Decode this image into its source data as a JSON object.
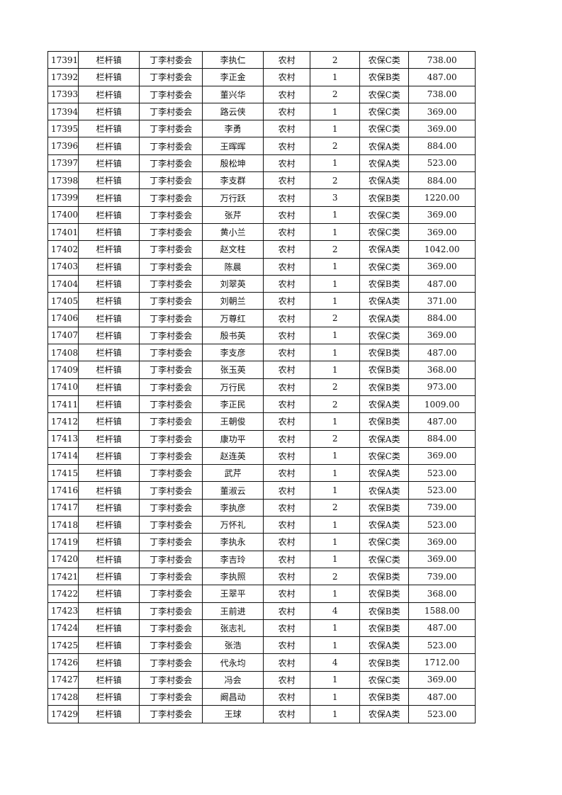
{
  "table": {
    "rows": [
      [
        "17391",
        "栏杆镇",
        "丁李村委会",
        "李执仁",
        "农村",
        "2",
        "农保C类",
        "738.00"
      ],
      [
        "17392",
        "栏杆镇",
        "丁李村委会",
        "李正金",
        "农村",
        "1",
        "农保B类",
        "487.00"
      ],
      [
        "17393",
        "栏杆镇",
        "丁李村委会",
        "董兴华",
        "农村",
        "2",
        "农保C类",
        "738.00"
      ],
      [
        "17394",
        "栏杆镇",
        "丁李村委会",
        "路云侠",
        "农村",
        "1",
        "农保C类",
        "369.00"
      ],
      [
        "17395",
        "栏杆镇",
        "丁李村委会",
        "李勇",
        "农村",
        "1",
        "农保C类",
        "369.00"
      ],
      [
        "17396",
        "栏杆镇",
        "丁李村委会",
        "王晖晖",
        "农村",
        "2",
        "农保A类",
        "884.00"
      ],
      [
        "17397",
        "栏杆镇",
        "丁李村委会",
        "殷松坤",
        "农村",
        "1",
        "农保A类",
        "523.00"
      ],
      [
        "17398",
        "栏杆镇",
        "丁李村委会",
        "李支群",
        "农村",
        "2",
        "农保A类",
        "884.00"
      ],
      [
        "17399",
        "栏杆镇",
        "丁李村委会",
        "万行跃",
        "农村",
        "3",
        "农保B类",
        "1220.00"
      ],
      [
        "17400",
        "栏杆镇",
        "丁李村委会",
        "张芹",
        "农村",
        "1",
        "农保C类",
        "369.00"
      ],
      [
        "17401",
        "栏杆镇",
        "丁李村委会",
        "黄小兰",
        "农村",
        "1",
        "农保C类",
        "369.00"
      ],
      [
        "17402",
        "栏杆镇",
        "丁李村委会",
        "赵文柱",
        "农村",
        "2",
        "农保A类",
        "1042.00"
      ],
      [
        "17403",
        "栏杆镇",
        "丁李村委会",
        "陈晨",
        "农村",
        "1",
        "农保C类",
        "369.00"
      ],
      [
        "17404",
        "栏杆镇",
        "丁李村委会",
        "刘翠英",
        "农村",
        "1",
        "农保B类",
        "487.00"
      ],
      [
        "17405",
        "栏杆镇",
        "丁李村委会",
        "刘朝兰",
        "农村",
        "1",
        "农保A类",
        "371.00"
      ],
      [
        "17406",
        "栏杆镇",
        "丁李村委会",
        "万尊红",
        "农村",
        "2",
        "农保A类",
        "884.00"
      ],
      [
        "17407",
        "栏杆镇",
        "丁李村委会",
        "殷书英",
        "农村",
        "1",
        "农保C类",
        "369.00"
      ],
      [
        "17408",
        "栏杆镇",
        "丁李村委会",
        "李支彦",
        "农村",
        "1",
        "农保B类",
        "487.00"
      ],
      [
        "17409",
        "栏杆镇",
        "丁李村委会",
        "张玉英",
        "农村",
        "1",
        "农保B类",
        "368.00"
      ],
      [
        "17410",
        "栏杆镇",
        "丁李村委会",
        "万行民",
        "农村",
        "2",
        "农保B类",
        "973.00"
      ],
      [
        "17411",
        "栏杆镇",
        "丁李村委会",
        "李正民",
        "农村",
        "2",
        "农保A类",
        "1009.00"
      ],
      [
        "17412",
        "栏杆镇",
        "丁李村委会",
        "王朝俊",
        "农村",
        "1",
        "农保B类",
        "487.00"
      ],
      [
        "17413",
        "栏杆镇",
        "丁李村委会",
        "康功平",
        "农村",
        "2",
        "农保A类",
        "884.00"
      ],
      [
        "17414",
        "栏杆镇",
        "丁李村委会",
        "赵连英",
        "农村",
        "1",
        "农保C类",
        "369.00"
      ],
      [
        "17415",
        "栏杆镇",
        "丁李村委会",
        "武芹",
        "农村",
        "1",
        "农保A类",
        "523.00"
      ],
      [
        "17416",
        "栏杆镇",
        "丁李村委会",
        "董淑云",
        "农村",
        "1",
        "农保A类",
        "523.00"
      ],
      [
        "17417",
        "栏杆镇",
        "丁李村委会",
        "李执彦",
        "农村",
        "2",
        "农保B类",
        "739.00"
      ],
      [
        "17418",
        "栏杆镇",
        "丁李村委会",
        "万怀礼",
        "农村",
        "1",
        "农保A类",
        "523.00"
      ],
      [
        "17419",
        "栏杆镇",
        "丁李村委会",
        "李执永",
        "农村",
        "1",
        "农保C类",
        "369.00"
      ],
      [
        "17420",
        "栏杆镇",
        "丁李村委会",
        "李吉玲",
        "农村",
        "1",
        "农保C类",
        "369.00"
      ],
      [
        "17421",
        "栏杆镇",
        "丁李村委会",
        "李执照",
        "农村",
        "2",
        "农保B类",
        "739.00"
      ],
      [
        "17422",
        "栏杆镇",
        "丁李村委会",
        "王翠平",
        "农村",
        "1",
        "农保B类",
        "368.00"
      ],
      [
        "17423",
        "栏杆镇",
        "丁李村委会",
        "王前进",
        "农村",
        "4",
        "农保B类",
        "1588.00"
      ],
      [
        "17424",
        "栏杆镇",
        "丁李村委会",
        "张志礼",
        "农村",
        "1",
        "农保B类",
        "487.00"
      ],
      [
        "17425",
        "栏杆镇",
        "丁李村委会",
        "张浩",
        "农村",
        "1",
        "农保A类",
        "523.00"
      ],
      [
        "17426",
        "栏杆镇",
        "丁李村委会",
        "代永均",
        "农村",
        "4",
        "农保B类",
        "1712.00"
      ],
      [
        "17427",
        "栏杆镇",
        "丁李村委会",
        "冯会",
        "农村",
        "1",
        "农保C类",
        "369.00"
      ],
      [
        "17428",
        "栏杆镇",
        "丁李村委会",
        "阚昌动",
        "农村",
        "1",
        "农保B类",
        "487.00"
      ],
      [
        "17429",
        "栏杆镇",
        "丁李村委会",
        "王球",
        "农村",
        "1",
        "农保A类",
        "523.00"
      ]
    ]
  }
}
